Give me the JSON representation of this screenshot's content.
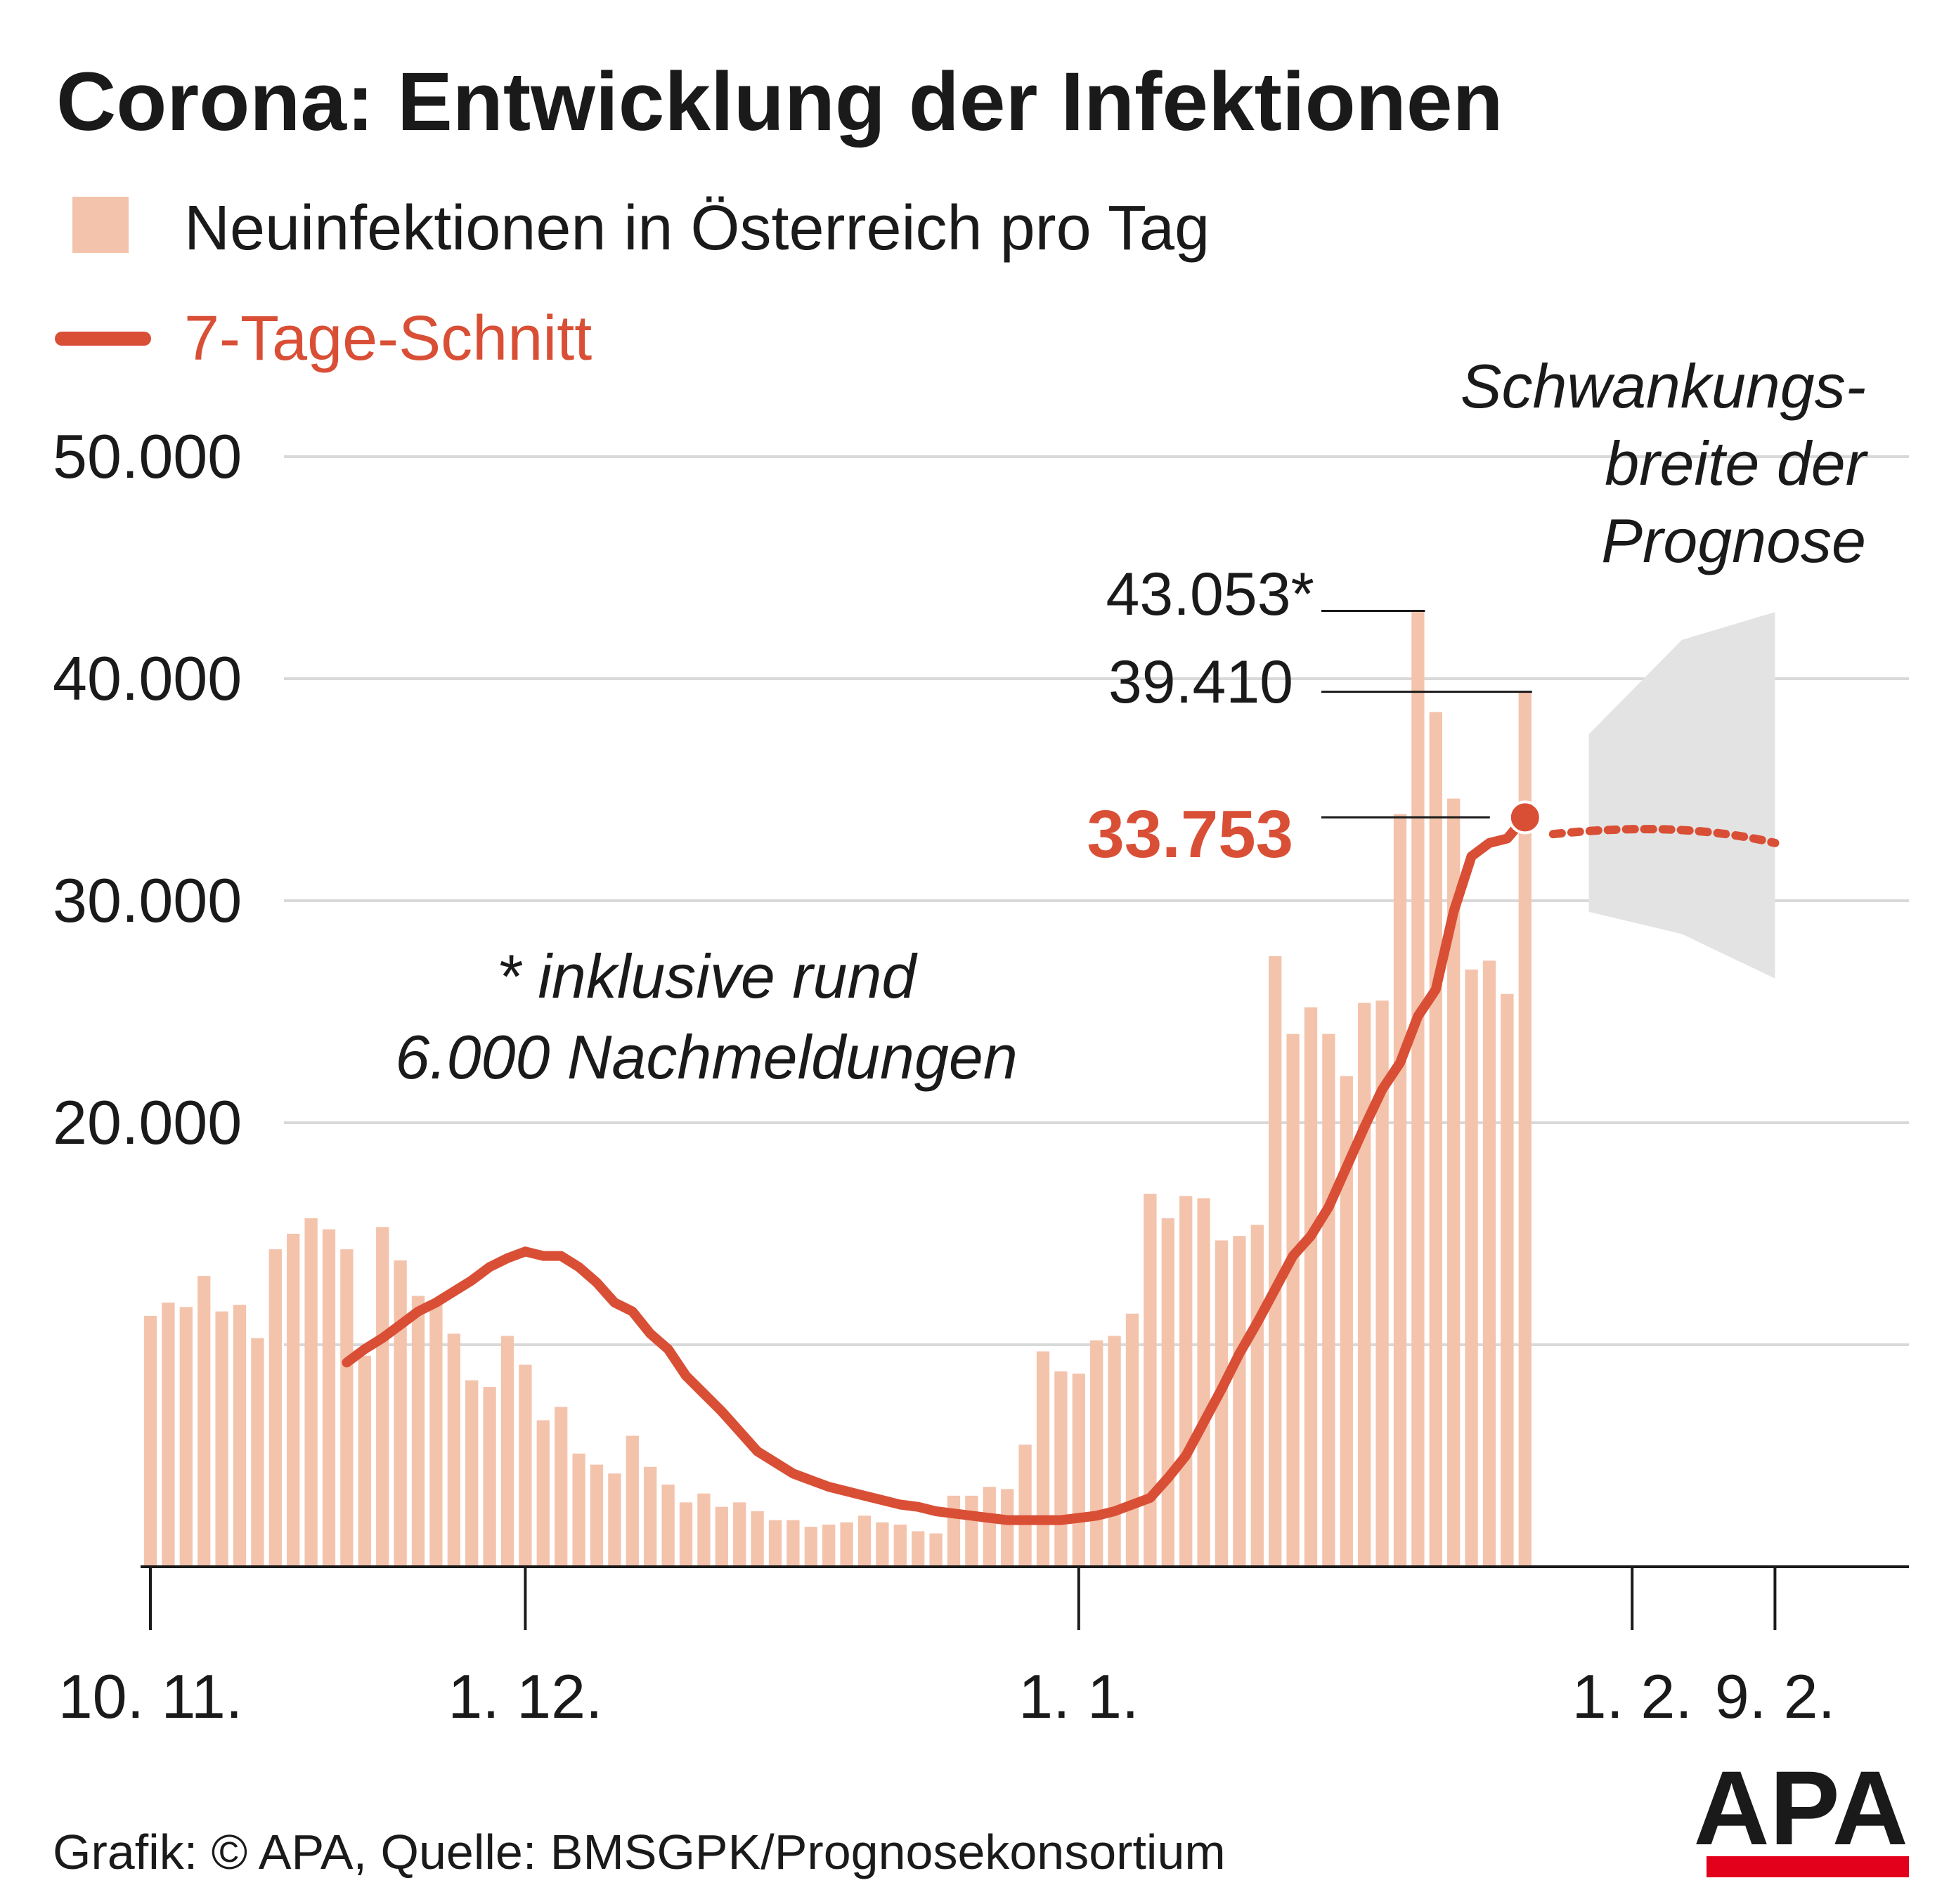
{
  "title": "Corona: Entwicklung der Infektionen",
  "legend": {
    "bars_label": "Neuinfektionen in Österreich pro Tag",
    "line_label": "7-Tage-Schnitt"
  },
  "colors": {
    "bar": "#f4c3ac",
    "line": "#d94f36",
    "grid": "#d9d9d9",
    "band": "#e3e3e3",
    "text": "#1a1a1a",
    "logo_red": "#e2001a"
  },
  "annotations": {
    "peak_label": "43.053*",
    "last_label": "39.410",
    "avg_label": "33.753",
    "band_label_line1": "Schwankungs-",
    "band_label_line2": "breite der",
    "band_label_line3": "Prognose",
    "footnote_line1": "* inklusive rund",
    "footnote_line2": "6.000 Nachmeldungen"
  },
  "source": "Grafik: © APA, Quelle: BMSGPK/Prognosekonsortium",
  "logo_text": "APA",
  "chart_data": {
    "type": "bar",
    "start_date": "10.11.",
    "y_ticks": [
      "50.000",
      "40.000",
      "30.000",
      "20.000"
    ],
    "y_tick_values": [
      50000,
      40000,
      30000,
      20000
    ],
    "ylim": [
      0,
      50000
    ],
    "grid": true,
    "x_ticks": [
      "10. 11.",
      "1. 12.",
      "1. 1.",
      "1. 2.",
      "9. 2."
    ],
    "x_tick_days": [
      0,
      21,
      52,
      83,
      91
    ],
    "series": [
      {
        "name": "Neuinfektionen in Österreich pro Tag",
        "type": "bar",
        "values": [
          11300,
          11900,
          11700,
          13100,
          11500,
          11800,
          10300,
          14300,
          15000,
          15700,
          15200,
          14300,
          9500,
          15300,
          13800,
          12200,
          11800,
          10500,
          8400,
          8100,
          10400,
          9100,
          6600,
          7200,
          5100,
          4600,
          4200,
          5900,
          4500,
          3700,
          2900,
          3300,
          2700,
          2900,
          2500,
          2100,
          2100,
          1800,
          1900,
          2000,
          2300,
          2000,
          1900,
          1600,
          1500,
          3200,
          3200,
          3600,
          3500,
          5500,
          9700,
          8800,
          8700,
          10200,
          10400,
          11400,
          16800,
          15700,
          16700,
          16600,
          14700,
          14900,
          15400,
          27500,
          24000,
          25200,
          24000,
          22100,
          25400,
          25500,
          33900,
          43053,
          38500,
          34600,
          26900,
          27300,
          25800,
          39410
        ]
      },
      {
        "name": "7-Tage-Schnitt",
        "type": "line",
        "values": [
          9200,
          9800,
          10300,
          10900,
          11500,
          11900,
          12400,
          12900,
          13500,
          13900,
          14200,
          14000,
          14000,
          13500,
          12800,
          11900,
          11500,
          10500,
          9800,
          8600,
          7800,
          7000,
          6100,
          5200,
          4700,
          4200,
          3900,
          3600,
          3400,
          3200,
          3000,
          2800,
          2700,
          2500,
          2400,
          2300,
          2200,
          2100,
          2100,
          2100,
          2100,
          2200,
          2300,
          2500,
          2800,
          3100,
          4000,
          5000,
          6500,
          8000,
          9600,
          11000,
          12500,
          14000,
          14900,
          16200,
          18000,
          19800,
          21500,
          22700,
          24800,
          26000,
          29500,
          32000,
          32600,
          32800,
          33753
        ]
      },
      {
        "name": "Prognose",
        "type": "forecast",
        "x_start_day": 79,
        "x_end_day": 91,
        "center": [
          33000,
          32800,
          32600
        ],
        "band_upper": [
          37500,
          43000
        ],
        "band_lower": [
          29500,
          26500
        ]
      }
    ]
  }
}
